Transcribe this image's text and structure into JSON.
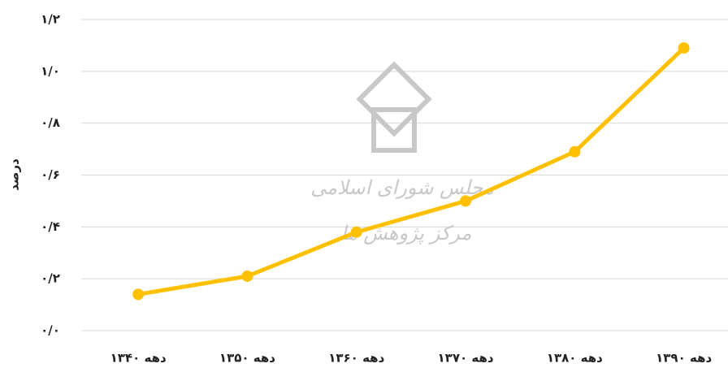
{
  "chart_data": {
    "type": "line",
    "y_label": "درصد",
    "watermark": [
      "مجلس شورای اسلامی",
      "مرکز پژوهش ها"
    ],
    "categories": [
      "دهه ۱۳۴۰",
      "دهه ۱۳۵۰",
      "دهه ۱۳۶۰",
      "دهه ۱۳۷۰",
      "دهه ۱۳۸۰",
      "دهه ۱۳۹۰"
    ],
    "series": [
      {
        "color": "#ffc000",
        "values": [
          0.14,
          0.21,
          0.38,
          0.5,
          0.69,
          1.09
        ]
      }
    ],
    "ylim": [
      0,
      1.2
    ],
    "yticks": [
      {
        "value": 0,
        "label": "۰/۰"
      },
      {
        "value": 0.2,
        "label": "۰/۲"
      },
      {
        "value": 0.4,
        "label": "۰/۴"
      },
      {
        "value": 0.6,
        "label": "۰/۶"
      },
      {
        "value": 0.8,
        "label": "۰/۸"
      },
      {
        "value": 1.0,
        "label": "۱/۰"
      },
      {
        "value": 1.2,
        "label": "۱/۲"
      }
    ],
    "grid": true
  }
}
